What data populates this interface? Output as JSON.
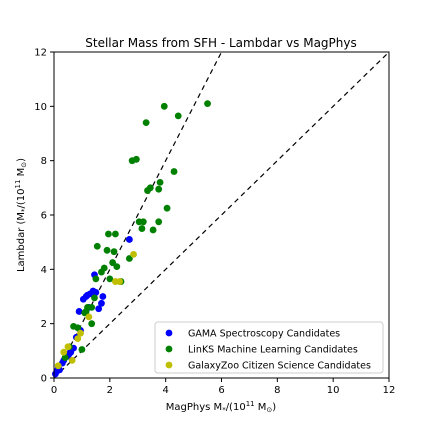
{
  "chart_data": {
    "type": "scatter",
    "title": "Stellar Mass from SFH - Lambdar vs MagPhys",
    "xlabel": "MagPhys M_*/(10^11 M_⊙)",
    "ylabel": "Lambdar (M_*/(10^11 M_⊙)",
    "xlim": [
      0,
      12
    ],
    "ylim": [
      0,
      12
    ],
    "xticks": [
      "0",
      "2",
      "4",
      "6",
      "8",
      "10",
      "12"
    ],
    "yticks": [
      "0",
      "2",
      "4",
      "6",
      "8",
      "10",
      "12"
    ],
    "grid": false,
    "legend_position": "lower-right",
    "reference_lines": [
      {
        "style": "dashed",
        "color": "#000000",
        "slope": 1
      },
      {
        "style": "dashed",
        "color": "#000000",
        "slope": 2
      }
    ],
    "series": [
      {
        "name": "GAMA Spectroscopy Candidates",
        "color": "#0000ff",
        "points": [
          [
            0.05,
            0.15
          ],
          [
            0.1,
            0.25
          ],
          [
            0.15,
            0.35
          ],
          [
            0.2,
            0.3
          ],
          [
            0.3,
            0.55
          ],
          [
            0.35,
            0.65
          ],
          [
            0.45,
            0.85
          ],
          [
            0.5,
            0.8
          ],
          [
            0.55,
            0.9
          ],
          [
            0.6,
            0.95
          ],
          [
            0.7,
            1.1
          ],
          [
            0.8,
            1.5
          ],
          [
            0.9,
            2.45
          ],
          [
            0.95,
            1.75
          ],
          [
            1.05,
            2.9
          ],
          [
            1.15,
            3.0
          ],
          [
            1.2,
            3.05
          ],
          [
            1.25,
            2.6
          ],
          [
            1.3,
            3.1
          ],
          [
            1.4,
            3.2
          ],
          [
            1.45,
            3.8
          ],
          [
            1.5,
            3.15
          ],
          [
            1.6,
            2.55
          ],
          [
            1.7,
            2.75
          ],
          [
            1.75,
            3.0
          ],
          [
            2.7,
            5.1
          ]
        ]
      },
      {
        "name": "LinKS Machine Learning Candidates",
        "color": "#008000",
        "points": [
          [
            0.7,
            1.9
          ],
          [
            0.85,
            1.85
          ],
          [
            1.0,
            1.05
          ],
          [
            1.1,
            2.4
          ],
          [
            1.2,
            2.6
          ],
          [
            1.35,
            2.0
          ],
          [
            1.45,
            2.95
          ],
          [
            1.5,
            3.65
          ],
          [
            1.55,
            4.85
          ],
          [
            1.7,
            3.9
          ],
          [
            1.8,
            4.05
          ],
          [
            1.9,
            4.7
          ],
          [
            1.95,
            5.3
          ],
          [
            2.0,
            3.65
          ],
          [
            2.1,
            4.25
          ],
          [
            2.15,
            4.65
          ],
          [
            2.2,
            5.3
          ],
          [
            2.25,
            4.1
          ],
          [
            2.4,
            3.55
          ],
          [
            2.7,
            4.4
          ],
          [
            2.8,
            8.0
          ],
          [
            2.95,
            8.05
          ],
          [
            3.05,
            5.75
          ],
          [
            3.15,
            5.5
          ],
          [
            3.2,
            5.75
          ],
          [
            3.3,
            9.4
          ],
          [
            3.35,
            6.9
          ],
          [
            3.45,
            7.0
          ],
          [
            3.55,
            5.45
          ],
          [
            3.75,
            5.75
          ],
          [
            3.75,
            6.95
          ],
          [
            3.8,
            7.2
          ],
          [
            3.95,
            10.0
          ],
          [
            4.05,
            6.25
          ],
          [
            4.3,
            7.6
          ],
          [
            4.45,
            9.65
          ],
          [
            5.5,
            10.1
          ],
          [
            0.4,
            0.75
          ],
          [
            0.55,
            1.15
          ],
          [
            1.15,
            2.45
          ],
          [
            1.35,
            2.6
          ]
        ]
      },
      {
        "name": "GalaxyZoo Citizen Science Candidates",
        "color": "#bfbf00",
        "points": [
          [
            0.15,
            0.45
          ],
          [
            0.35,
            0.95
          ],
          [
            0.5,
            1.15
          ],
          [
            0.65,
            0.65
          ],
          [
            0.85,
            1.45
          ],
          [
            0.95,
            1.65
          ],
          [
            1.25,
            2.25
          ],
          [
            2.2,
            3.55
          ],
          [
            2.35,
            3.55
          ],
          [
            2.85,
            4.55
          ]
        ]
      }
    ]
  }
}
